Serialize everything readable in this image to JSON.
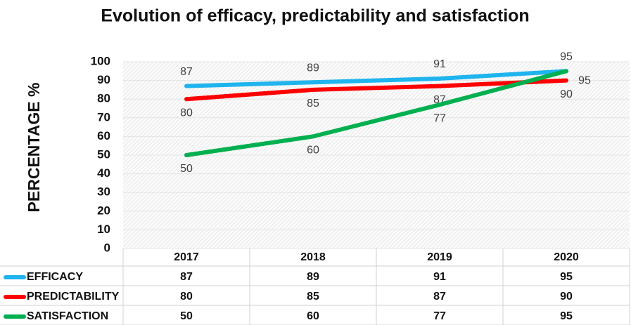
{
  "chart_data": {
    "type": "line",
    "title": "Evolution of efficacy, predictability and satisfaction",
    "y_label": "PERCENTAGE %",
    "categories": [
      "2017",
      "2018",
      "2019",
      "2020"
    ],
    "series": [
      {
        "name": "EFFICACY",
        "color": "#1fb4ee",
        "values": [
          87,
          89,
          91,
          95
        ]
      },
      {
        "name": "PREDICTABILITY",
        "color": "#ff0000",
        "values": [
          80,
          85,
          87,
          90
        ]
      },
      {
        "name": "SATISFACTION",
        "color": "#00b050",
        "values": [
          50,
          60,
          77,
          95
        ]
      }
    ],
    "ylim": [
      0,
      100
    ],
    "yticks": [
      0,
      10,
      20,
      30,
      40,
      50,
      60,
      70,
      80,
      90,
      100
    ],
    "grid": true
  }
}
